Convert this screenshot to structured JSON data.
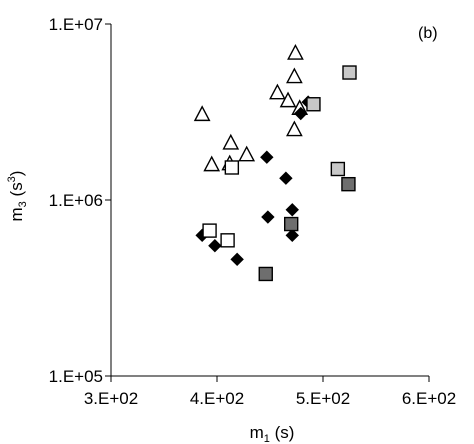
{
  "chart_data": {
    "type": "scatter",
    "panel_label": "(b)",
    "x_axis": {
      "label": "m",
      "label_sub": "1",
      "label_unit": " (s)",
      "scale": "linear",
      "range": [
        300,
        600
      ],
      "ticks": [
        300,
        400,
        500,
        600
      ],
      "tick_labels": [
        "3.E+02",
        "4.E+02",
        "5.E+02",
        "6.E+02"
      ]
    },
    "y_axis": {
      "label": "m",
      "label_sub": "3",
      "label_unit_open": " (s",
      "label_unit_sup": "3",
      "label_unit_close": ")",
      "scale": "log",
      "range": [
        100000,
        10000000
      ],
      "ticks": [
        100000,
        1000000,
        10000000
      ],
      "tick_labels": [
        "1.E+05",
        "1.E+06",
        "1.E+07"
      ]
    },
    "grid": false,
    "legend": "none",
    "series": [
      {
        "marker": "triangle-open",
        "points": [
          [
            386,
            3050000
          ],
          [
            395,
            1580000
          ],
          [
            413,
            2100000
          ],
          [
            412,
            1600000
          ],
          [
            428,
            1800000
          ],
          [
            457,
            4050000
          ],
          [
            467,
            3650000
          ],
          [
            473,
            2500000
          ],
          [
            473,
            5000000
          ],
          [
            474,
            6800000
          ],
          [
            478,
            3300000
          ]
        ]
      },
      {
        "marker": "diamond-filled",
        "points": [
          [
            386,
            630000
          ],
          [
            398,
            550000
          ],
          [
            419,
            460000
          ],
          [
            447,
            1750000
          ],
          [
            448,
            800000
          ],
          [
            465,
            1330000
          ],
          [
            471,
            880000
          ],
          [
            471,
            630000
          ],
          [
            479,
            3100000
          ],
          [
            486,
            3600000
          ]
        ]
      },
      {
        "marker": "square-open",
        "points": [
          [
            393,
            670000
          ],
          [
            410,
            590000
          ],
          [
            414,
            1530000
          ]
        ]
      },
      {
        "marker": "square-lightgray",
        "points": [
          [
            491,
            3500000
          ],
          [
            514,
            1500000
          ],
          [
            525,
            5300000
          ]
        ]
      },
      {
        "marker": "square-darkgray",
        "points": [
          [
            446,
            380000
          ],
          [
            470,
            730000
          ],
          [
            524,
            1230000
          ]
        ]
      }
    ],
    "marker_colors": {
      "triangle-open": "#ffffff",
      "diamond-filled": "#000000",
      "square-open": "#ffffff",
      "square-lightgray": "#c8c8c8",
      "square-darkgray": "#6e6e6e",
      "stroke": "#000000"
    }
  }
}
